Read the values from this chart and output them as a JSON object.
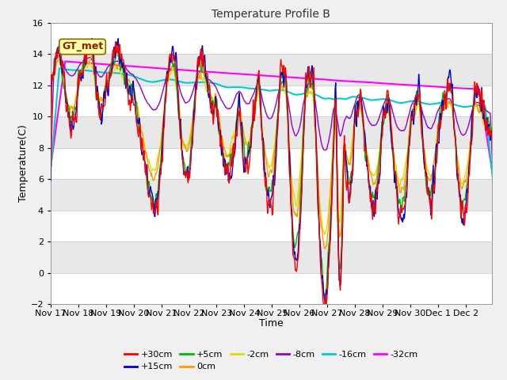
{
  "title": "Temperature Profile B",
  "xlabel": "Time",
  "ylabel": "Temperature(C)",
  "ylim": [
    -2,
    16
  ],
  "fig_bg": "#f0f0f0",
  "ax_bg": "#ffffff",
  "band_colors": [
    "#ffffff",
    "#e8e8e8"
  ],
  "series_info": {
    "+30cm": {
      "color": "#ff0000",
      "lw": 1.0,
      "zorder": 5
    },
    "+15cm": {
      "color": "#0000cc",
      "lw": 1.0,
      "zorder": 5
    },
    "+5cm": {
      "color": "#00bb00",
      "lw": 1.0,
      "zorder": 5
    },
    "0cm": {
      "color": "#ff9900",
      "lw": 1.0,
      "zorder": 5
    },
    "-2cm": {
      "color": "#dddd00",
      "lw": 1.0,
      "zorder": 5
    },
    "-8cm": {
      "color": "#9900cc",
      "lw": 1.0,
      "zorder": 5
    },
    "-16cm": {
      "color": "#00cccc",
      "lw": 1.5,
      "zorder": 4
    },
    "-32cm": {
      "color": "#ff00ff",
      "lw": 1.5,
      "zorder": 4
    }
  },
  "legend_order": [
    "+30cm",
    "+15cm",
    "+5cm",
    "0cm",
    "-2cm",
    "-8cm",
    "-16cm",
    "-32cm"
  ],
  "gtmet_label": "GT_met",
  "gtmet_facecolor": "#ffffaa",
  "gtmet_edgecolor": "#886600",
  "gtmet_textcolor": "#882200",
  "xtick_labels": [
    "Nov 17",
    "Nov 18",
    "Nov 19",
    "Nov 20",
    "Nov 21",
    "Nov 22",
    "Nov 23",
    "Nov 24",
    "Nov 25",
    "Nov 26",
    "Nov 27",
    "Nov 28",
    "Nov 29",
    "Nov 30",
    "Dec 1",
    "Dec 2"
  ],
  "ytick_vals": [
    -2,
    0,
    2,
    4,
    6,
    8,
    10,
    12,
    14,
    16
  ],
  "n_days": 16,
  "pts_per_day": 48
}
